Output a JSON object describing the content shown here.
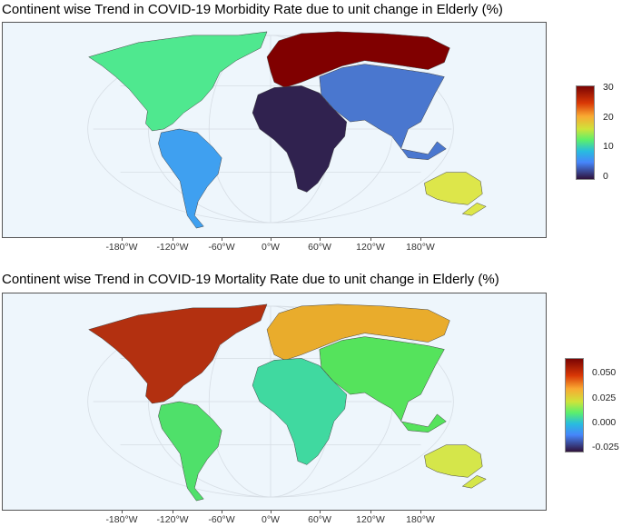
{
  "panels": [
    {
      "title": "Continent wise Trend in COVID-19 Morbidity Rate due to unit change in Elderly (%)",
      "x_ticks": [
        "-180°W",
        "-120°W",
        "-60°W",
        "0°W",
        "60°W",
        "120°W",
        "180°W"
      ],
      "legend": {
        "min": 0,
        "max": 30,
        "ticks": [
          "30",
          "20",
          "10",
          "0"
        ],
        "tick_values": [
          30,
          20,
          10,
          0
        ]
      },
      "continents": {
        "north_america": {
          "value": 10,
          "color": "#4fe88f"
        },
        "south_america": {
          "value": 5,
          "color": "#3fa0f0"
        },
        "europe": {
          "value": 30,
          "color": "#800000"
        },
        "africa": {
          "value": -2,
          "color": "#30224f"
        },
        "asia": {
          "value": 3,
          "color": "#4a77cf"
        },
        "oceania": {
          "value": 16,
          "color": "#dde64a"
        }
      }
    },
    {
      "title": "Continent wise Trend in COVID-19 Mortality Rate due to unit change in Elderly (%)",
      "x_ticks": [
        "-180°W",
        "-120°W",
        "-60°W",
        "0°W",
        "60°W",
        "120°W",
        "180°W"
      ],
      "legend": {
        "min": -0.03,
        "max": 0.065,
        "ticks": [
          "0.050",
          "0.025",
          "0.000",
          "-0.025"
        ],
        "tick_values": [
          0.05,
          0.025,
          0.0,
          -0.025
        ]
      },
      "continents": {
        "north_america": {
          "value": 0.06,
          "color": "#b33010"
        },
        "south_america": {
          "value": 0.007,
          "color": "#4fe06a"
        },
        "europe": {
          "value": 0.032,
          "color": "#e9ac2c"
        },
        "africa": {
          "value": 0.0,
          "color": "#40d9a0"
        },
        "asia": {
          "value": 0.008,
          "color": "#55e35c"
        },
        "oceania": {
          "value": 0.018,
          "color": "#d5e64a"
        }
      }
    }
  ]
}
